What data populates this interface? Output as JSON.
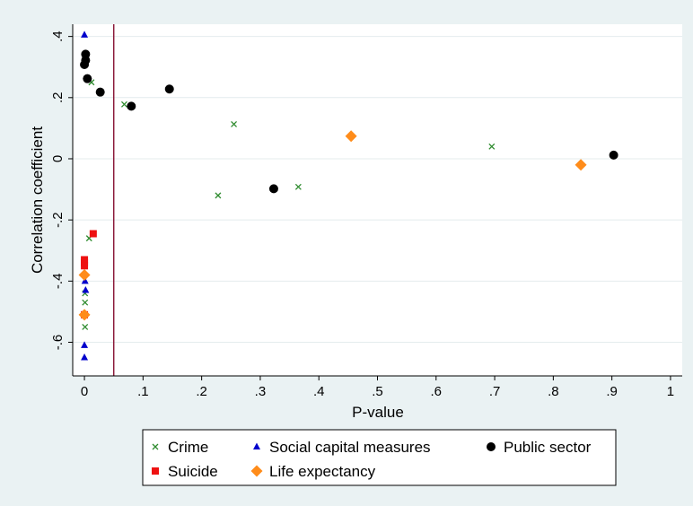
{
  "chart_data": {
    "type": "scatter",
    "xlabel": "P-value",
    "ylabel": "Correlation coefficient",
    "xlim": [
      -0.02,
      1.02
    ],
    "ylim": [
      -0.71,
      0.44
    ],
    "x_ticks": [
      0,
      0.1,
      0.2,
      0.3,
      0.4,
      0.5,
      0.6,
      0.7,
      0.8,
      0.9,
      1
    ],
    "x_tick_labels": [
      "0",
      ".1",
      ".2",
      ".3",
      ".4",
      ".5",
      ".6",
      ".7",
      ".8",
      ".9",
      "1"
    ],
    "y_ticks": [
      0.4,
      0.2,
      0,
      -0.2,
      -0.4,
      -0.6
    ],
    "y_tick_labels": [
      ".4",
      ".2",
      "0",
      "-.2",
      "-.4",
      "-.6"
    ],
    "grid": true,
    "reference_line": {
      "axis": "x",
      "value": 0.05,
      "color": "#8b1a3a"
    },
    "legend_position": "bottom",
    "series": [
      {
        "name": "Crime",
        "marker": "x",
        "color": "#2e8b2e",
        "points": [
          [
            0.012,
            0.25
          ],
          [
            0.068,
            0.178
          ],
          [
            0.255,
            0.113
          ],
          [
            0.228,
            -0.12
          ],
          [
            0.365,
            -0.092
          ],
          [
            0.695,
            0.04
          ],
          [
            0.008,
            -0.26
          ],
          [
            0.001,
            -0.44
          ],
          [
            0.001,
            -0.47
          ],
          [
            0.001,
            -0.55
          ]
        ]
      },
      {
        "name": "Social capital measures",
        "marker": "triangle",
        "color": "#0000cc",
        "points": [
          [
            0.0,
            0.405
          ],
          [
            0.001,
            -0.4
          ],
          [
            0.002,
            -0.43
          ],
          [
            0.0,
            -0.61
          ],
          [
            0.0,
            -0.65
          ]
        ]
      },
      {
        "name": "Public sector",
        "marker": "circle",
        "color": "#000000",
        "points": [
          [
            0.002,
            0.342
          ],
          [
            0.002,
            0.322
          ],
          [
            0.0,
            0.308
          ],
          [
            0.005,
            0.262
          ],
          [
            0.027,
            0.218
          ],
          [
            0.08,
            0.172
          ],
          [
            0.145,
            0.228
          ],
          [
            0.323,
            -0.098
          ],
          [
            0.903,
            0.012
          ]
        ]
      },
      {
        "name": "Suicide",
        "marker": "square",
        "color": "#ee1111",
        "points": [
          [
            0.015,
            -0.245
          ],
          [
            0.0,
            -0.33
          ],
          [
            0.0,
            -0.34
          ],
          [
            0.0,
            -0.35
          ],
          [
            0.0,
            -0.51
          ]
        ]
      },
      {
        "name": "Life expectancy",
        "marker": "diamond",
        "color": "#ff8c1a",
        "points": [
          [
            0.455,
            0.074
          ],
          [
            0.847,
            -0.02
          ],
          [
            0.0,
            -0.38
          ],
          [
            0.0,
            -0.51
          ]
        ]
      }
    ]
  }
}
